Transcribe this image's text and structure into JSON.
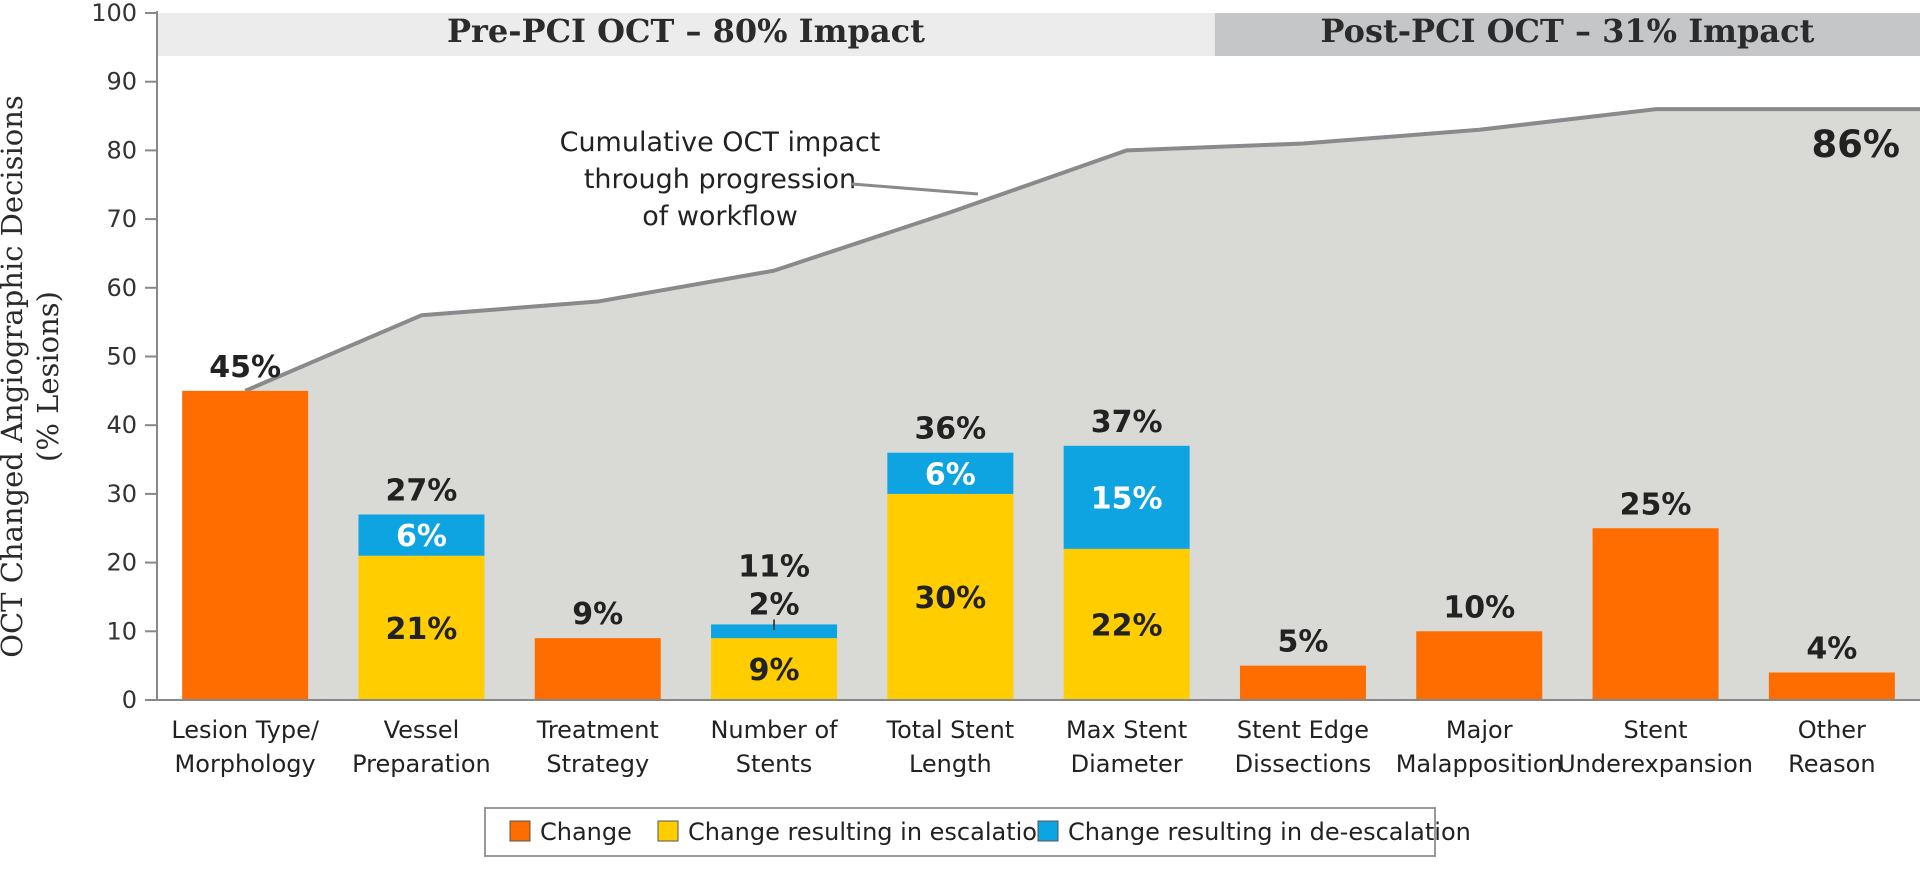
{
  "chart_data": {
    "type": "bar",
    "stacked": true,
    "ylabel_line1": "OCT Changed Angiographic Decisions",
    "ylabel_line2": "(% Lesions)",
    "ylim": [
      0,
      100
    ],
    "yticks": [
      0,
      10,
      20,
      30,
      40,
      50,
      60,
      70,
      80,
      90,
      100
    ],
    "phases": [
      {
        "label": "Pre-PCI OCT – 80% Impact",
        "start": 0,
        "end": 6,
        "color": "#ececec"
      },
      {
        "label": "Post-PCI OCT – 31% Impact",
        "start": 6,
        "end": 10,
        "color": "#c5c6c8"
      }
    ],
    "categories": [
      [
        "Lesion Type/",
        "Morphology"
      ],
      [
        "Vessel",
        "Preparation"
      ],
      [
        "Treatment",
        "Strategy"
      ],
      [
        "Number of",
        "Stents"
      ],
      [
        "Total Stent",
        "Length"
      ],
      [
        "Max Stent",
        "Diameter"
      ],
      [
        "Stent Edge",
        "Dissections"
      ],
      [
        "Major",
        "Malapposition"
      ],
      [
        "Stent",
        "Underexpansion"
      ],
      [
        "Other",
        "Reason"
      ]
    ],
    "series": [
      {
        "name": "Change",
        "color": "#ff6c00",
        "values": [
          45,
          0,
          9,
          0,
          0,
          0,
          5,
          10,
          25,
          4
        ]
      },
      {
        "name": "Change resulting in escalation",
        "color": "#ffcd00",
        "values": [
          0,
          21,
          0,
          9,
          30,
          22,
          0,
          0,
          0,
          0
        ]
      },
      {
        "name": "Change resulting in de-escalation",
        "color": "#0ea4e2",
        "values": [
          0,
          6,
          0,
          2,
          6,
          15,
          0,
          0,
          0,
          0
        ]
      }
    ],
    "totals": [
      45,
      27,
      9,
      11,
      36,
      37,
      5,
      10,
      25,
      4
    ],
    "total_labels": [
      "45%",
      "27%",
      "9%",
      "11%",
      "36%",
      "37%",
      "5%",
      "10%",
      "25%",
      "4%"
    ],
    "segment_labels": [
      [
        "",
        "",
        ""
      ],
      [
        "",
        "21%",
        "6%"
      ],
      [
        "",
        "",
        ""
      ],
      [
        "",
        "9%",
        "2%"
      ],
      [
        "",
        "30%",
        "6%"
      ],
      [
        "",
        "22%",
        "15%"
      ],
      [
        "",
        "",
        ""
      ],
      [
        "",
        "",
        ""
      ],
      [
        "",
        "",
        ""
      ],
      [
        "",
        "",
        ""
      ]
    ],
    "cumulative": {
      "values": [
        45,
        56,
        58,
        62.5,
        71,
        80,
        81,
        83,
        86,
        86
      ],
      "final_label": "86%",
      "annotation": [
        "Cumulative OCT impact",
        "through progression",
        "of workflow"
      ],
      "line_color": "#898a8c",
      "area_color": "#d9d9d6"
    },
    "legend": {
      "position": "bottom-center",
      "items": [
        {
          "label": "Change",
          "color": "#ff6c00"
        },
        {
          "label": "Change resulting in escalation",
          "color": "#ffcd00"
        },
        {
          "label": "Change resulting in de-escalation",
          "color": "#0ea4e2"
        }
      ]
    }
  }
}
